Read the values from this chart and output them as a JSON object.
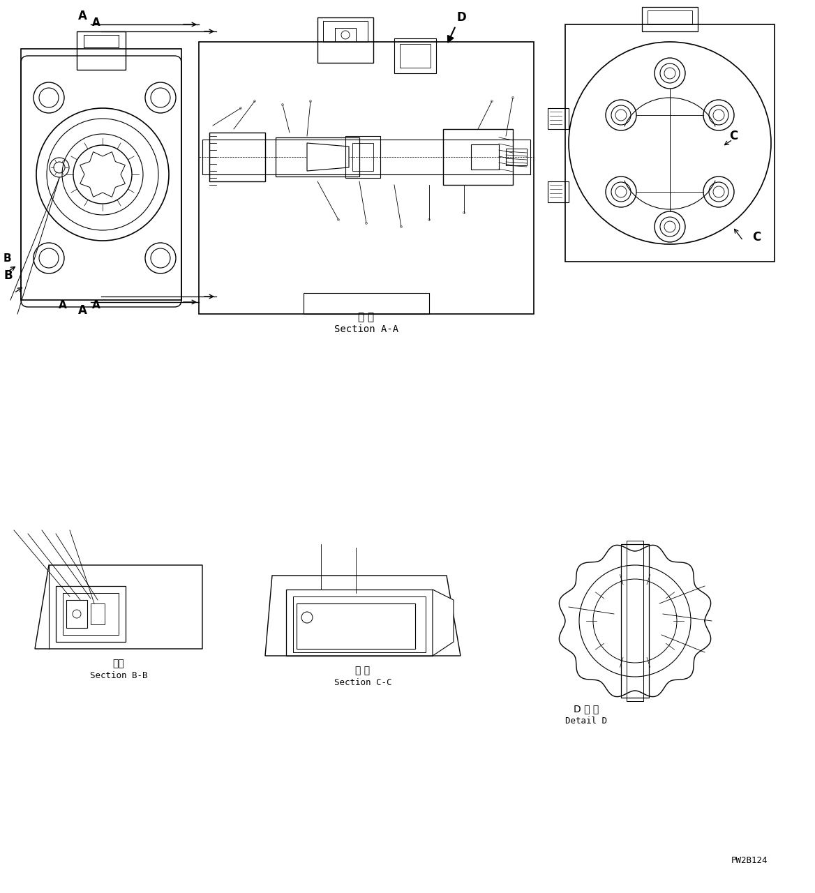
{
  "title": "",
  "bg_color": "#ffffff",
  "line_color": "#000000",
  "fig_width": 11.68,
  "fig_height": 12.8,
  "watermark": "PW2B124",
  "section_aa_label_jp": "断 面",
  "section_aa_label_en": "Section A-A",
  "section_bb_label_jp": "断面",
  "section_bb_label_en": "Section B-B",
  "section_cc_label_jp": "断 面",
  "section_cc_label_en": "Section C-C",
  "detail_d_label_jp": "D 詳 細",
  "detail_d_label_en": "Detail D",
  "label_A": "A",
  "label_B": "B",
  "label_C": "C",
  "label_D": "D"
}
